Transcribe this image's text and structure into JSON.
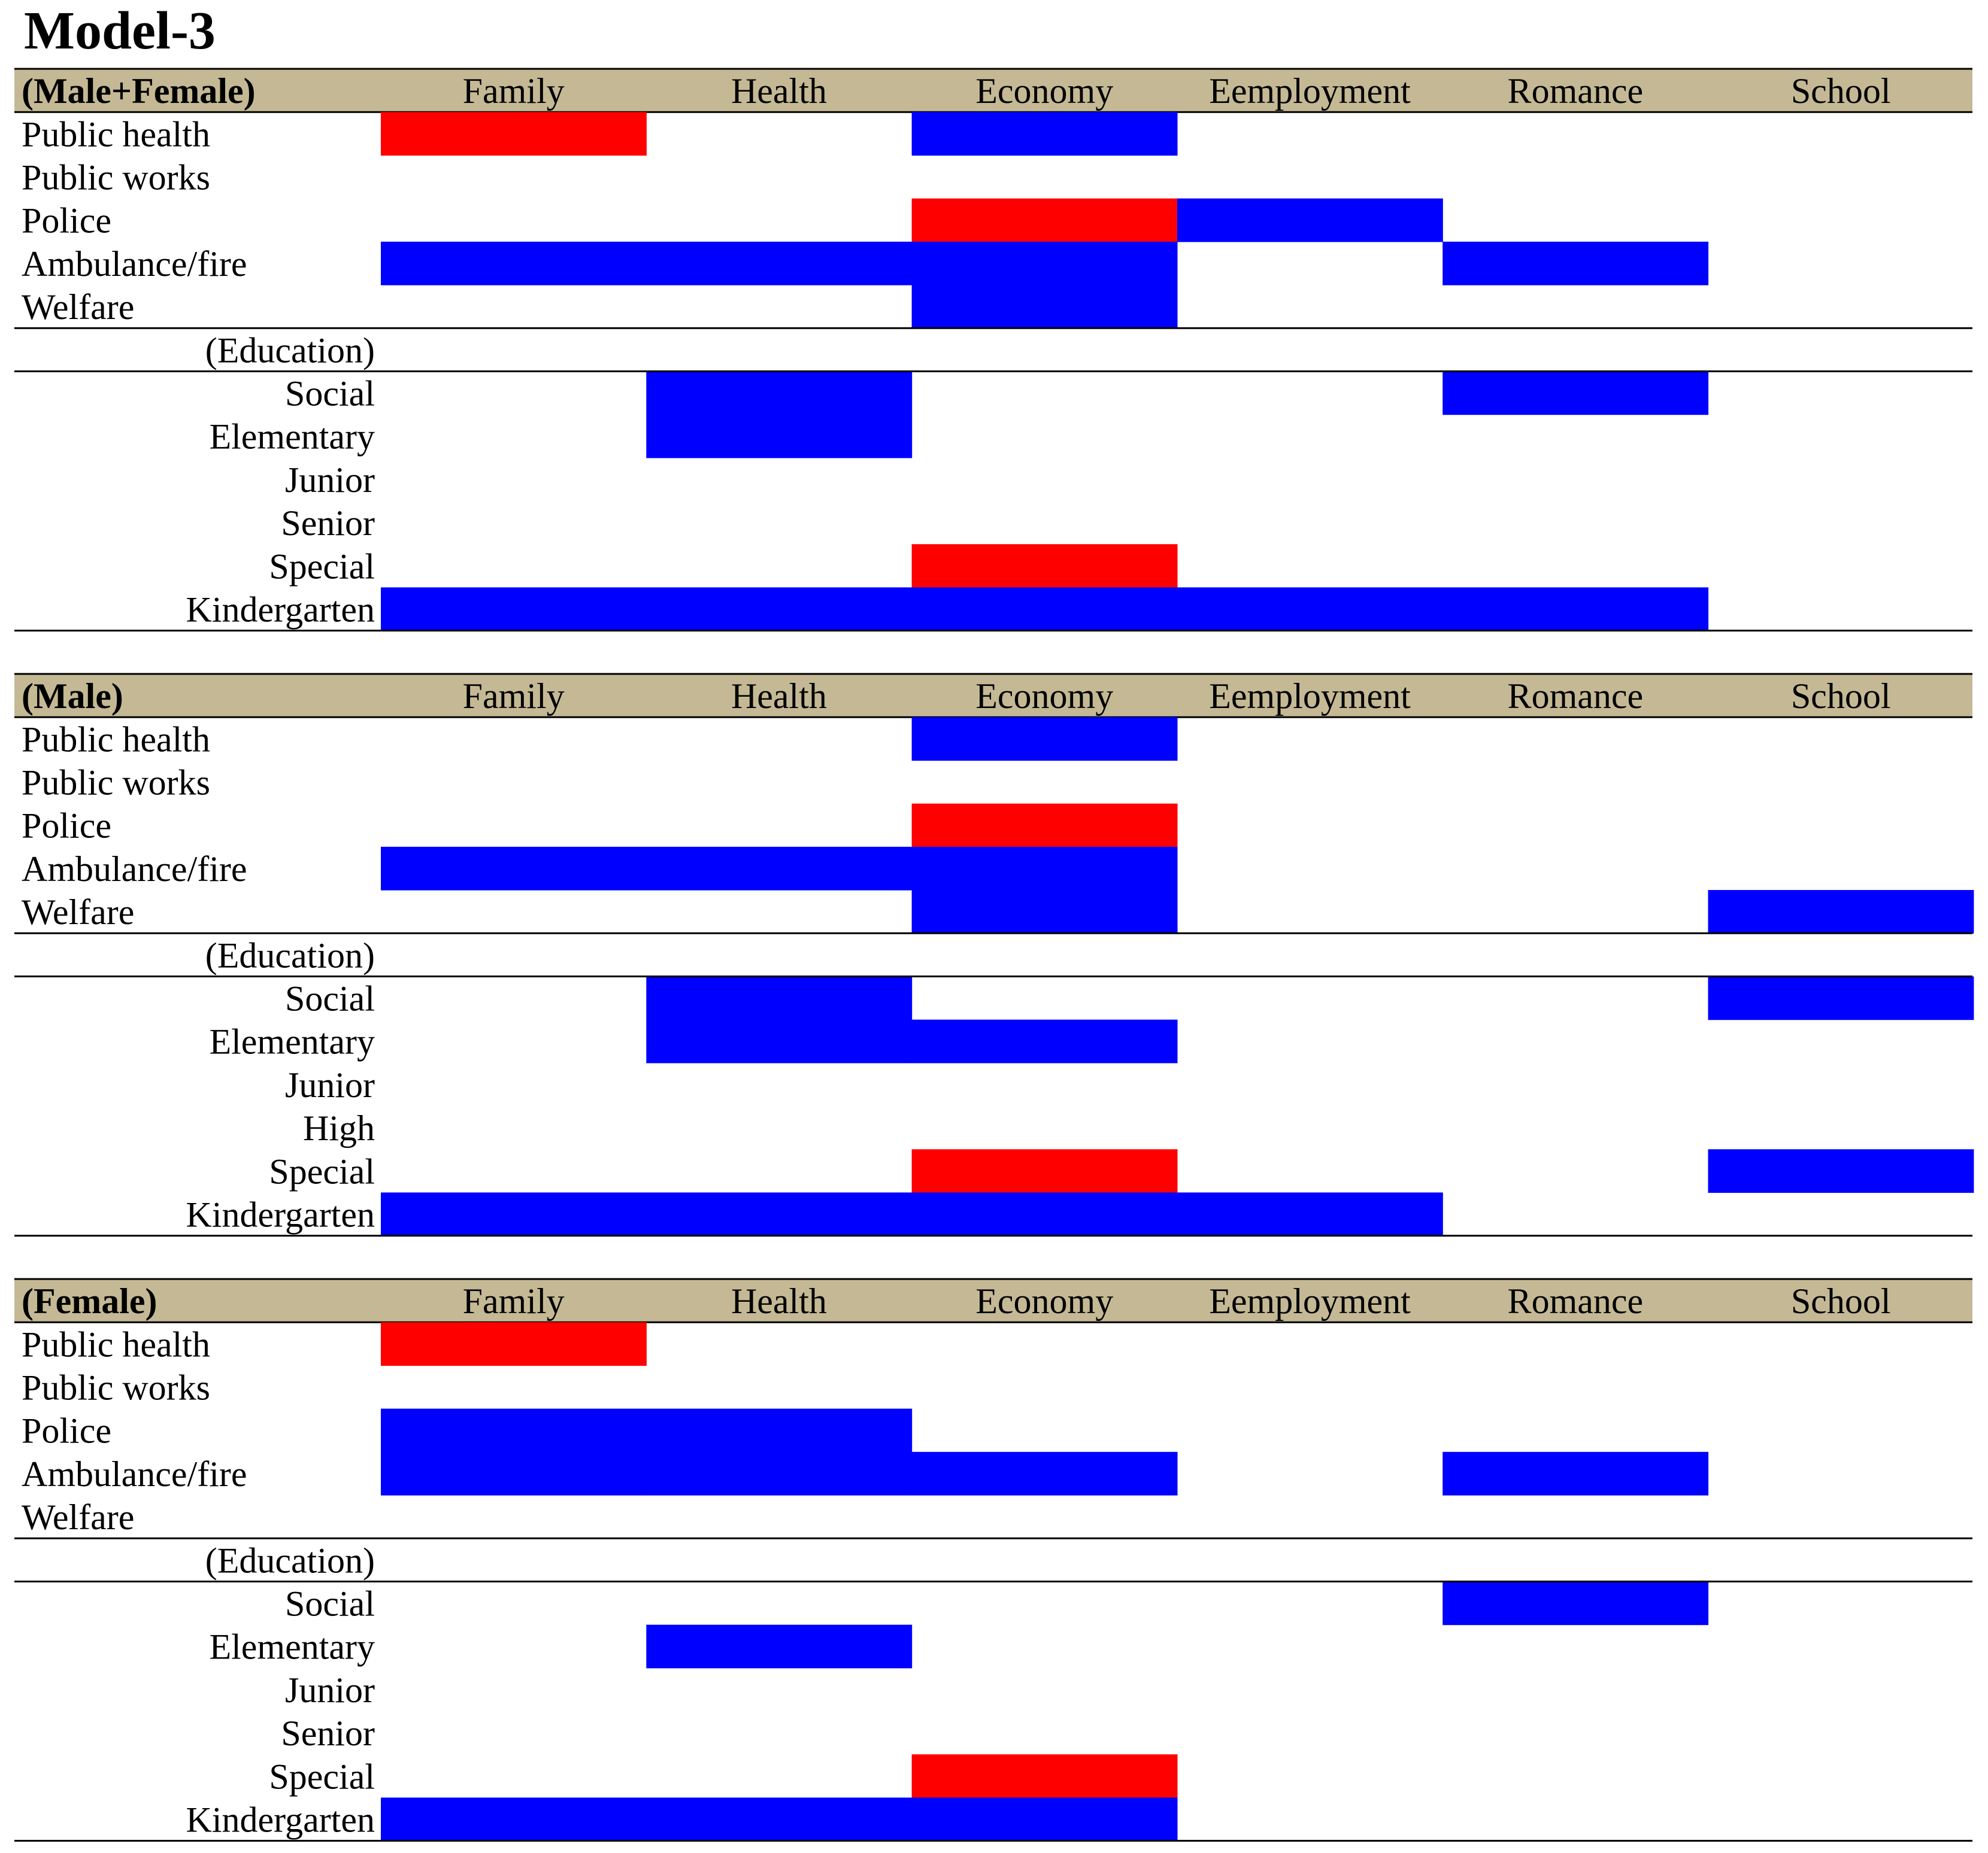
{
  "title": "Model-3",
  "colors": {
    "header_band": "#c4b994",
    "positive": "#0000ff",
    "negative": "#ff0000",
    "rule": "#000000"
  },
  "chart_data": [
    {
      "type": "heatmap",
      "panel_label": "(Male+Female)",
      "columns": [
        "Family",
        "Health",
        "Economy",
        "Eemployment",
        "Romance",
        "School"
      ],
      "section_label": "(Education)",
      "rows": [
        "Public health",
        "Public works",
        "Police",
        "Ambulance/fire",
        "Welfare",
        "Social",
        "Elementary",
        "Junior",
        "Senior",
        "Special",
        "Kindergarten"
      ],
      "section_start_index": 5,
      "cells": [
        [
          "red",
          "",
          "blue",
          "",
          "",
          ""
        ],
        [
          "",
          "",
          "",
          "",
          "",
          ""
        ],
        [
          "",
          "",
          "red",
          "blue",
          "",
          ""
        ],
        [
          "blue",
          "blue",
          "blue",
          "",
          "blue",
          ""
        ],
        [
          "",
          "",
          "blue",
          "",
          "",
          ""
        ],
        [
          "",
          "blue",
          "",
          "",
          "blue",
          ""
        ],
        [
          "",
          "blue",
          "",
          "",
          "",
          ""
        ],
        [
          "",
          "",
          "",
          "",
          "",
          ""
        ],
        [
          "",
          "",
          "",
          "",
          "",
          ""
        ],
        [
          "",
          "",
          "red",
          "",
          "",
          ""
        ],
        [
          "blue",
          "blue",
          "blue",
          "blue",
          "blue",
          ""
        ]
      ]
    },
    {
      "type": "heatmap",
      "panel_label": "(Male)",
      "columns": [
        "Family",
        "Health",
        "Economy",
        "Eemployment",
        "Romance",
        "School"
      ],
      "section_label": "(Education)",
      "rows": [
        "Public health",
        "Public works",
        "Police",
        "Ambulance/fire",
        "Welfare",
        "Social",
        "Elementary",
        "Junior",
        "High",
        "Special",
        "Kindergarten"
      ],
      "section_start_index": 5,
      "cells": [
        [
          "",
          "",
          "blue",
          "",
          "",
          ""
        ],
        [
          "",
          "",
          "",
          "",
          "",
          ""
        ],
        [
          "",
          "",
          "red",
          "",
          "",
          ""
        ],
        [
          "blue",
          "blue",
          "blue",
          "",
          "",
          ""
        ],
        [
          "",
          "",
          "blue",
          "",
          "",
          "blue"
        ],
        [
          "",
          "blue",
          "",
          "",
          "",
          "blue"
        ],
        [
          "",
          "blue",
          "blue",
          "",
          "",
          ""
        ],
        [
          "",
          "",
          "",
          "",
          "",
          ""
        ],
        [
          "",
          "",
          "",
          "",
          "",
          ""
        ],
        [
          "",
          "",
          "red",
          "",
          "",
          "blue"
        ],
        [
          "blue",
          "blue",
          "blue",
          "blue",
          "",
          ""
        ]
      ]
    },
    {
      "type": "heatmap",
      "panel_label": "(Female)",
      "columns": [
        "Family",
        "Health",
        "Economy",
        "Eemployment",
        "Romance",
        "School"
      ],
      "section_label": "(Education)",
      "rows": [
        "Public health",
        "Public works",
        "Police",
        "Ambulance/fire",
        "Welfare",
        "Social",
        "Elementary",
        "Junior",
        "Senior",
        "Special",
        "Kindergarten"
      ],
      "section_start_index": 5,
      "cells": [
        [
          "red",
          "",
          "",
          "",
          "",
          ""
        ],
        [
          "",
          "",
          "",
          "",
          "",
          ""
        ],
        [
          "blue",
          "blue",
          "",
          "",
          "",
          ""
        ],
        [
          "blue",
          "blue",
          "blue",
          "",
          "blue",
          ""
        ],
        [
          "",
          "",
          "",
          "",
          "",
          ""
        ],
        [
          "",
          "",
          "",
          "",
          "blue",
          ""
        ],
        [
          "",
          "blue",
          "",
          "",
          "",
          ""
        ],
        [
          "",
          "",
          "",
          "",
          "",
          ""
        ],
        [
          "",
          "",
          "",
          "",
          "",
          ""
        ],
        [
          "",
          "",
          "red",
          "",
          "",
          ""
        ],
        [
          "blue",
          "blue",
          "blue",
          "",
          "",
          ""
        ]
      ]
    }
  ]
}
